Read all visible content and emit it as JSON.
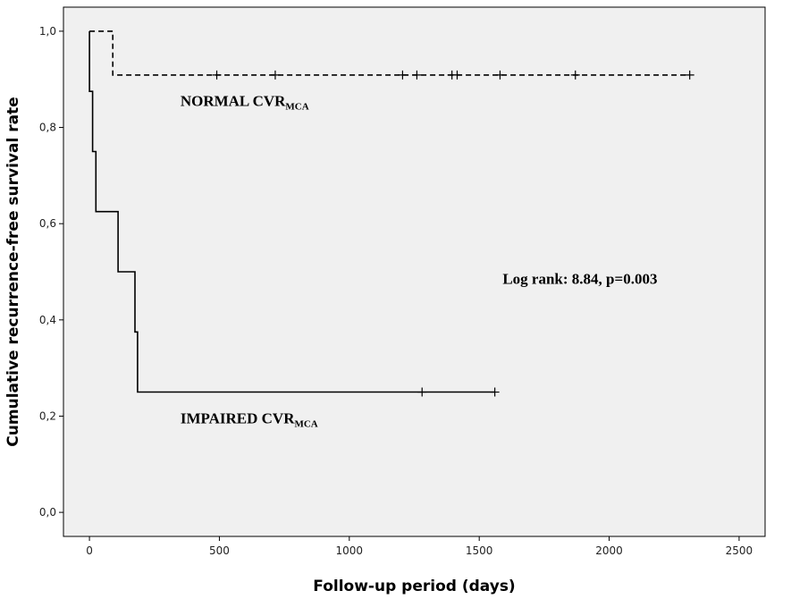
{
  "chart_data": {
    "type": "line",
    "subtype": "kaplan-meier step",
    "xlabel": "Follow-up period (days)",
    "ylabel": "Cumulative recurrence-free survival rate",
    "xlim": [
      -100,
      2600
    ],
    "ylim": [
      -0.05,
      1.05
    ],
    "x_ticks": [
      0,
      500,
      1000,
      1500,
      2000,
      2500
    ],
    "x_tick_labels": [
      "0",
      "500",
      "1000",
      "1500",
      "2000",
      "2500"
    ],
    "y_ticks": [
      0,
      0.2,
      0.4,
      0.6,
      0.8,
      1.0
    ],
    "y_tick_labels": [
      "0,0",
      "0,2",
      "0,4",
      "0,6",
      "0,8",
      "1,0"
    ],
    "plot_background": "#f0f0f0",
    "grid": false,
    "series": [
      {
        "name": "NORMAL CVRMCA",
        "line_style": "dashed",
        "color": "#000000",
        "steps": [
          [
            0,
            1.0
          ],
          [
            90,
            1.0
          ],
          [
            90,
            0.909
          ],
          [
            2310,
            0.909
          ]
        ],
        "censored_x": [
          490,
          715,
          1205,
          1260,
          1395,
          1415,
          1580,
          1870,
          2310
        ]
      },
      {
        "name": "IMPAIRED CVRMCA",
        "line_style": "solid",
        "color": "#000000",
        "steps": [
          [
            0,
            1.0
          ],
          [
            0,
            0.875
          ],
          [
            12,
            0.875
          ],
          [
            12,
            0.75
          ],
          [
            25,
            0.75
          ],
          [
            25,
            0.625
          ],
          [
            110,
            0.625
          ],
          [
            110,
            0.5
          ],
          [
            175,
            0.5
          ],
          [
            175,
            0.375
          ],
          [
            185,
            0.375
          ],
          [
            185,
            0.25
          ],
          [
            1560,
            0.25
          ]
        ],
        "censored_x": [
          1280,
          1560
        ]
      }
    ],
    "annotations": [
      {
        "id": "normal",
        "main": "NORMAL CVR",
        "sub": "MCA",
        "x": 350,
        "y": 0.845
      },
      {
        "id": "impaired",
        "main": "IMPAIRED CVR",
        "sub": "MCA",
        "x": 350,
        "y": 0.185
      },
      {
        "id": "logrank",
        "main": "Log rank: 8.84, p=0.003",
        "sub": "",
        "x": 1590,
        "y": 0.475
      }
    ]
  }
}
